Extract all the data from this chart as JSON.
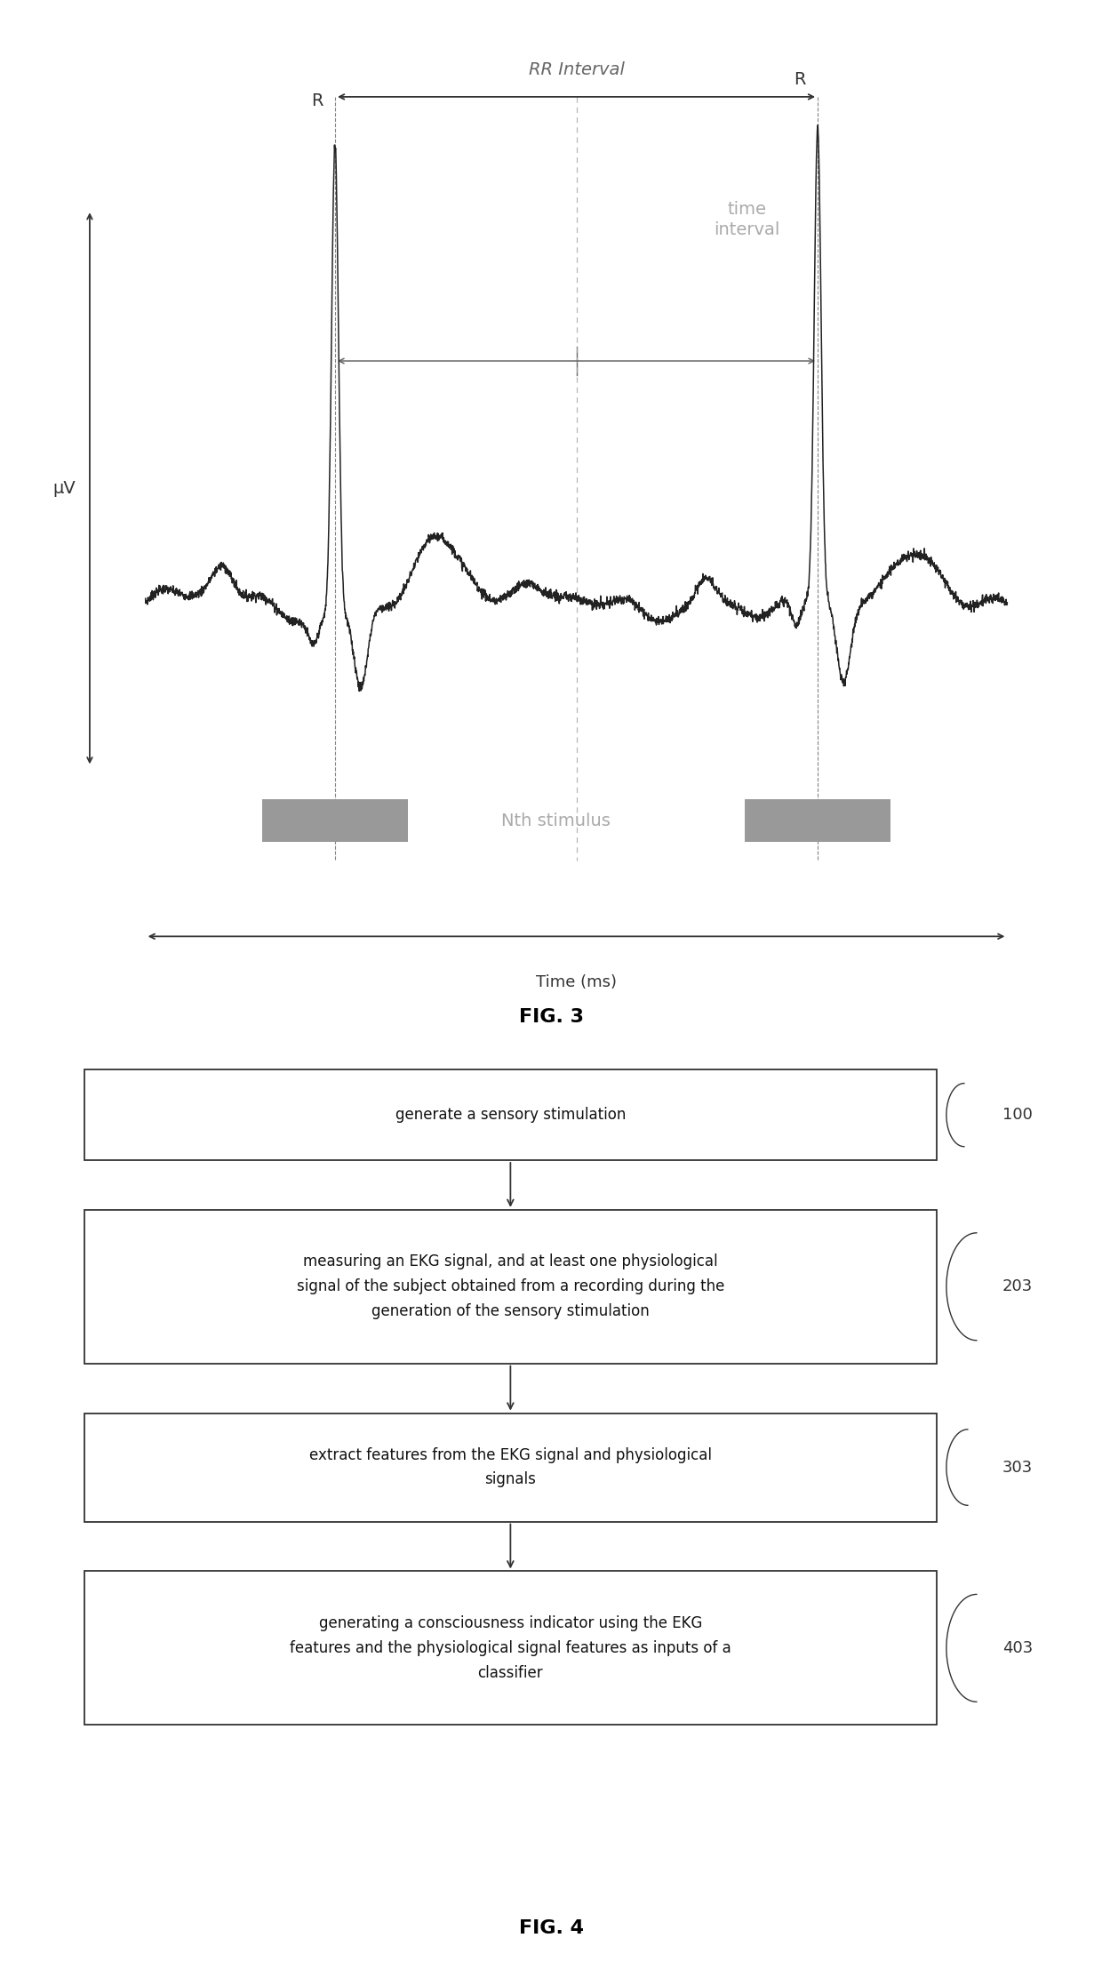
{
  "fig3_title": "FIG. 3",
  "fig4_title": "FIG. 4",
  "rr_interval_label": "RR Interval",
  "time_interval_label": "time\ninterval",
  "nth_stimulus_label": "Nth stimulus",
  "time_ms_label": "Time (ms)",
  "mu_v_label": "μV",
  "r_label": "R",
  "flow_boxes": [
    {
      "label": "generate a sensory stimulation",
      "tag": "100"
    },
    {
      "label": "measuring an EKG signal, and at least one physiological\nsignal of the subject obtained from a recording during the\ngeneration of the sensory stimulation",
      "tag": "203"
    },
    {
      "label": "extract features from the EKG signal and physiological\nsignals",
      "tag": "303"
    },
    {
      "label": "generating a consciousness indicator using the EKG\nfeatures and the physiological signal features as inputs of a\nclassifier",
      "tag": "403"
    }
  ],
  "bg_color": "#ffffff",
  "line_color": "#333333",
  "gray_color": "#888888",
  "box_edge_color": "#333333",
  "box_fill_color": "#ffffff",
  "stimulus_box_color": "#999999",
  "ecg_color": "#222222",
  "annotation_color": "#666666",
  "time_interval_color": "#aaaaaa"
}
